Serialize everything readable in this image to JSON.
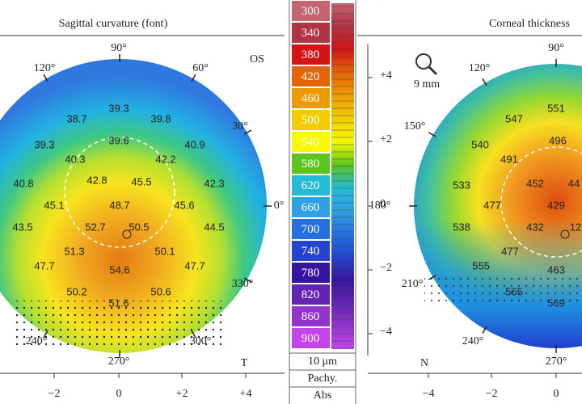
{
  "left_panel": {
    "title": "Sagittal curvature (font)",
    "eye": "OS",
    "side": "T",
    "angles": [
      "90°",
      "120°",
      "60°",
      "30°",
      "0°",
      "330°",
      "300°",
      "270°",
      "240°"
    ],
    "values": [
      "38.7",
      "39.3",
      "39.8",
      "39.3",
      "39.6",
      "40.9",
      "40.3",
      "42.2",
      "40.8",
      "42.8",
      "45.5",
      "42.3",
      "45.1",
      "48.7",
      "45.6",
      "43.5",
      "52.7",
      "50.5",
      "44.5",
      "51.3",
      "50.1",
      "47.7",
      "54.6",
      "47.7",
      "50.2",
      "50.6",
      "51.6"
    ],
    "x_ticks": [
      "−2",
      "0",
      "+2",
      "+4"
    ]
  },
  "color_scale": {
    "entries": [
      {
        "label": "300",
        "color": "#c4646e"
      },
      {
        "label": "340",
        "color": "#b03444"
      },
      {
        "label": "380",
        "color": "#d41414"
      },
      {
        "label": "420",
        "color": "#e46408"
      },
      {
        "label": "460",
        "color": "#ec9c00"
      },
      {
        "label": "500",
        "color": "#f2cc00"
      },
      {
        "label": "540",
        "color": "#f8f800"
      },
      {
        "label": "580",
        "color": "#5cc41c"
      },
      {
        "label": "620",
        "color": "#22bcd4"
      },
      {
        "label": "660",
        "color": "#30a0e4"
      },
      {
        "label": "700",
        "color": "#2470e0"
      },
      {
        "label": "740",
        "color": "#2444d0"
      },
      {
        "label": "780",
        "color": "#3414a0"
      },
      {
        "label": "820",
        "color": "#6424b4"
      },
      {
        "label": "860",
        "color": "#9434cc"
      },
      {
        "label": "900",
        "color": "#c444ea"
      }
    ],
    "footer": [
      "10 μm",
      "Pachy.",
      "Abs"
    ]
  },
  "right_panel": {
    "title": "Corneal thickness",
    "zoom": "9 mm",
    "side": "N",
    "angles": [
      "90°",
      "120°",
      "150°",
      "180°",
      "210°",
      "240°",
      "270°"
    ],
    "values": [
      "551",
      "547",
      "540",
      "496",
      "491",
      "533",
      "452",
      "44",
      "477",
      "429",
      "538",
      "432",
      "12",
      "477",
      "555",
      "463",
      "565",
      "569"
    ],
    "y_ticks": [
      "+4",
      "+2",
      "0",
      "−2",
      "−4"
    ],
    "x_ticks": [
      "−4",
      "−2",
      "0"
    ]
  }
}
